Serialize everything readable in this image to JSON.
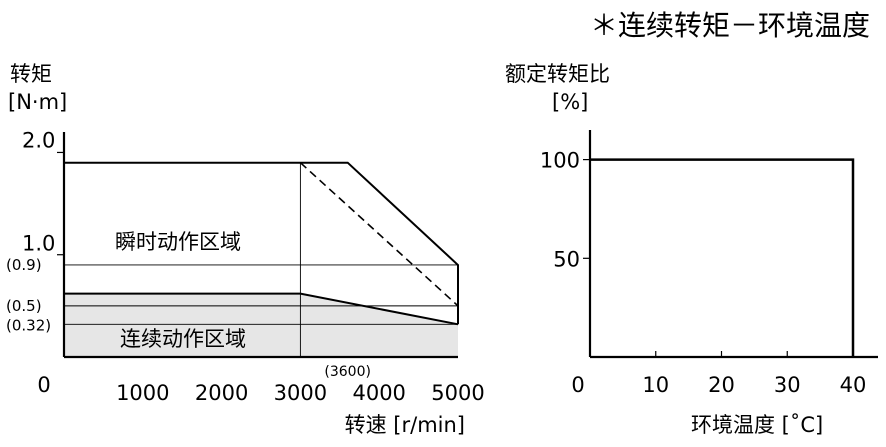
{
  "note": "＊连续转矩－环境温度",
  "chart_data": [
    {
      "type": "area",
      "ylabel_lines": [
        "转矩",
        "[N·m]"
      ],
      "xlabel": "转速 [r/min]",
      "xlim": [
        0,
        5000
      ],
      "ylim": [
        0,
        2.2
      ],
      "x_ticks": [
        0,
        1000,
        2000,
        3000,
        4000,
        5000
      ],
      "y_ticks": [
        {
          "value": 2.0,
          "label": "2.0"
        },
        {
          "value": 1.0,
          "label": "1.0"
        },
        {
          "value": 0.9,
          "label": "(0.9)"
        },
        {
          "value": 0.5,
          "label": "(0.5)"
        },
        {
          "value": 0.32,
          "label": "(0.32)"
        }
      ],
      "x_annotation": {
        "value": 3600,
        "label": "(3600)"
      },
      "regions": [
        {
          "name": "瞬时动作区域",
          "points": [
            [
              0,
              1.9
            ],
            [
              3600,
              1.9
            ],
            [
              5000,
              0.9
            ],
            [
              5000,
              0.32
            ],
            [
              3000,
              0.62
            ],
            [
              0,
              0.62
            ]
          ]
        },
        {
          "name": "连续动作区域",
          "points": [
            [
              0,
              0.62
            ],
            [
              3000,
              0.62
            ],
            [
              5000,
              0.32
            ],
            [
              5000,
              0
            ],
            [
              0,
              0
            ]
          ]
        }
      ],
      "dashed_line": [
        [
          3000,
          1.9
        ],
        [
          5000,
          0.5
        ]
      ],
      "guide_lines": {
        "y": [
          0.9,
          0.5,
          0.32
        ],
        "x": [
          3000
        ]
      }
    },
    {
      "type": "line",
      "ylabel_lines": [
        "额定转矩比",
        "[%]"
      ],
      "xlabel": "环境温度 [˚C]",
      "xlim": [
        0,
        40
      ],
      "ylim": [
        0,
        115
      ],
      "x_ticks": [
        0,
        10,
        20,
        30,
        40
      ],
      "y_ticks": [
        {
          "value": 100,
          "label": "100"
        },
        {
          "value": 50,
          "label": "50"
        }
      ],
      "x": [
        0,
        40,
        40
      ],
      "y": [
        100,
        100,
        0
      ]
    }
  ]
}
